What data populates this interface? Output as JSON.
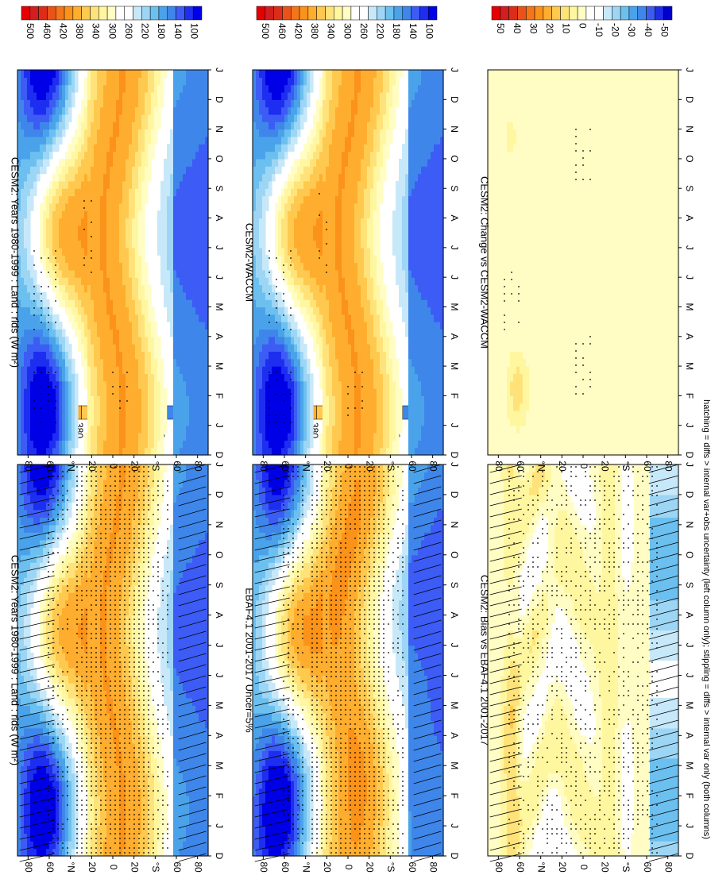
{
  "figure": {
    "footnote": "hatching = diffs > internal var+obs uncertainty (left column only); stippling = diffs > internal var only (both columns)"
  },
  "colors": {
    "abs_scale": [
      "#0000e6",
      "#1e2ef0",
      "#3c5cf5",
      "#3f86ea",
      "#4aa3ea",
      "#6cc0ef",
      "#9dd6f5",
      "#c7e8f9",
      "#ffffff",
      "#ffffff",
      "#fffdc4",
      "#fff6a0",
      "#ffe37a",
      "#ffc94f",
      "#ffad2e",
      "#fb9219",
      "#f47619",
      "#ea5219",
      "#dc2d19",
      "#d11e1e",
      "#e60000"
    ],
    "diff_scale": [
      "#0000cc",
      "#1e2ee6",
      "#3c5cf0",
      "#3f86ea",
      "#4aa3ea",
      "#6cc0ef",
      "#9dd6f5",
      "#c7e8f9",
      "#ffffff",
      "#ffffff",
      "#fffdc4",
      "#fff6a0",
      "#ffe37a",
      "#ffc94f",
      "#ffad2e",
      "#fb9219",
      "#f47619",
      "#ea5219",
      "#dc2d19",
      "#d11e1e",
      "#e60000"
    ]
  },
  "chart_data": [
    {
      "type": "heatmap",
      "panel": "top-left",
      "title": "CESM2: Years 1980-1999 : Land : rlds (W m²)",
      "xlabel": "",
      "ylabel": "",
      "x_ticks": [
        "D",
        "J",
        "F",
        "M",
        "A",
        "M",
        "J",
        "J",
        "A",
        "S",
        "O",
        "N",
        "D",
        "J"
      ],
      "y_ticks": [
        "80",
        "60",
        "°N",
        "20",
        "0",
        "20",
        "°S",
        "60",
        "80"
      ],
      "ylim": [
        -90,
        90
      ],
      "colorbar_ticks": [
        "500",
        "460",
        "420",
        "380",
        "340",
        "300",
        "260",
        "220",
        "180",
        "140",
        "100"
      ],
      "colorbar_range": [
        80,
        520
      ],
      "field": "abs",
      "hatching": "polar",
      "stippling": "dense"
    },
    {
      "type": "heatmap",
      "panel": "middle-left",
      "title": "EBAF4.1 2001-2017 Uncer=5%",
      "xlabel": "",
      "ylabel": "",
      "x_ticks": [
        "D",
        "J",
        "F",
        "M",
        "A",
        "M",
        "J",
        "J",
        "A",
        "S",
        "O",
        "N",
        "D",
        "J"
      ],
      "y_ticks": [
        "80",
        "60",
        "°N",
        "20",
        "0",
        "20",
        "°S",
        "60",
        "80"
      ],
      "ylim": [
        -90,
        90
      ],
      "colorbar_ticks": [
        "500",
        "460",
        "420",
        "380",
        "340",
        "300",
        "260",
        "220",
        "180",
        "140",
        "100"
      ],
      "colorbar_range": [
        80,
        520
      ],
      "field": "abs",
      "hatching": "polar",
      "stippling": "dense"
    },
    {
      "type": "heatmap",
      "panel": "bottom-left",
      "title": "CESM2: Bias vs EBAF4.1 2001-2017",
      "xlabel": "",
      "ylabel": "",
      "x_ticks": [
        "D",
        "J",
        "F",
        "M",
        "A",
        "M",
        "J",
        "J",
        "A",
        "S",
        "O",
        "N",
        "D",
        "J"
      ],
      "y_ticks": [
        "80",
        "60",
        "°N",
        "20",
        "0",
        "20",
        "°S",
        "60",
        "80"
      ],
      "ylim": [
        -90,
        90
      ],
      "colorbar_ticks": [
        "50",
        "40",
        "30",
        "20",
        "10",
        "0",
        "-10",
        "-20",
        "-30",
        "-40",
        "-50"
      ],
      "colorbar_range": [
        -55,
        55
      ],
      "field": "bias",
      "hatching": "polar",
      "stippling": "dense"
    },
    {
      "type": "heatmap",
      "panel": "top-right",
      "title": "CESM2: Years 1980-1999 : Land : rlds (W m²)",
      "xlabel": "",
      "ylabel": "",
      "x_ticks": [
        "D",
        "J",
        "F",
        "M",
        "A",
        "M",
        "J",
        "J",
        "A",
        "S",
        "O",
        "N",
        "D",
        "J"
      ],
      "y_ticks": [
        "80",
        "60",
        "°N",
        "20",
        "0",
        "20",
        "°S",
        "60",
        "80"
      ],
      "ylim": [
        -90,
        90
      ],
      "colorbar_ticks": [
        "500",
        "460",
        "420",
        "380",
        "340",
        "300",
        "260",
        "220",
        "180",
        "140",
        "100"
      ],
      "colorbar_range": [
        80,
        520
      ],
      "field": "abs",
      "hatching": "none",
      "stippling": "sparse"
    },
    {
      "type": "heatmap",
      "panel": "middle-right",
      "title": "CESM2-WACCM",
      "xlabel": "",
      "ylabel": "",
      "x_ticks": [
        "D",
        "J",
        "F",
        "M",
        "A",
        "M",
        "J",
        "J",
        "A",
        "S",
        "O",
        "N",
        "D",
        "J"
      ],
      "y_ticks": [
        "80",
        "60",
        "°N",
        "20",
        "0",
        "20",
        "°S",
        "60",
        "80"
      ],
      "ylim": [
        -90,
        90
      ],
      "colorbar_ticks": [
        "500",
        "460",
        "420",
        "380",
        "340",
        "300",
        "260",
        "220",
        "180",
        "140",
        "100"
      ],
      "colorbar_range": [
        80,
        520
      ],
      "field": "abs",
      "hatching": "none",
      "stippling": "sparse"
    },
    {
      "type": "heatmap",
      "panel": "bottom-right",
      "title": "CESM2: Change vs CESM2-WACCM",
      "xlabel": "",
      "ylabel": "",
      "x_ticks": [
        "D",
        "J",
        "F",
        "M",
        "A",
        "M",
        "J",
        "J",
        "A",
        "S",
        "O",
        "N",
        "D",
        "J"
      ],
      "y_ticks": [
        "80",
        "60",
        "°N",
        "20",
        "0",
        "20",
        "°S",
        "60",
        "80"
      ],
      "ylim": [
        -90,
        90
      ],
      "colorbar_ticks": [
        "50",
        "40",
        "30",
        "20",
        "10",
        "0",
        "-10",
        "-20",
        "-30",
        "-40",
        "-50"
      ],
      "colorbar_range": [
        -55,
        55
      ],
      "field": "change",
      "hatching": "none",
      "stippling": "sparse"
    }
  ]
}
